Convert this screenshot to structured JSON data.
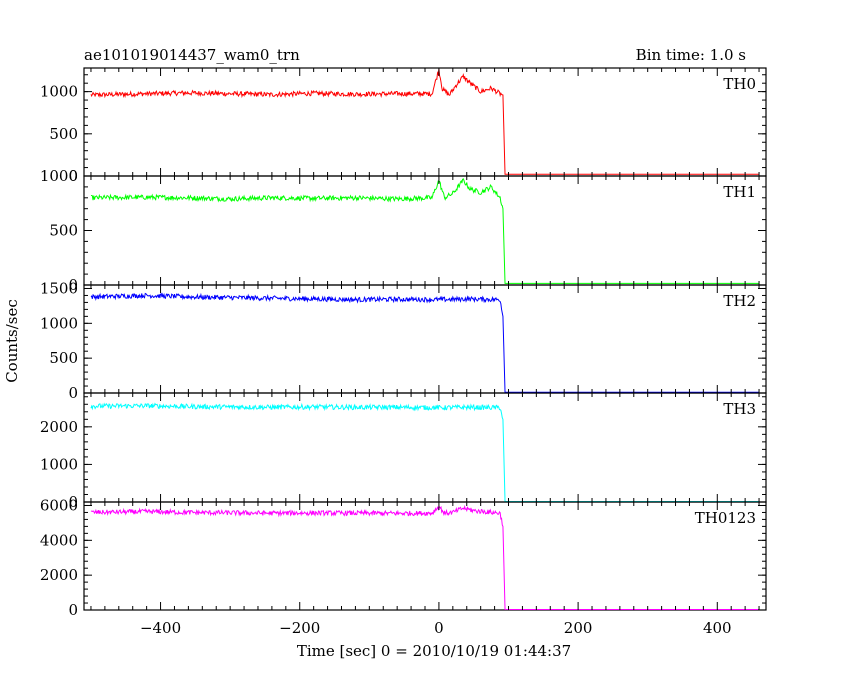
{
  "header": {
    "title": "ae101019014437_wam0_trn",
    "bin_time": "Bin time: 1.0 s"
  },
  "chart_data": {
    "type": "line",
    "title": "ae101019014437_wam0_trn",
    "subtitle": "Bin time: 1.0 s",
    "xlabel": "Time [sec] 0 = 2010/10/19 01:44:37",
    "ylabel": "Counts/sec",
    "xlim": [
      -510,
      470
    ],
    "x_ticks": [
      -400,
      -200,
      0,
      200,
      400
    ],
    "x_tick_labels": [
      "−400",
      "−200",
      "0",
      "200",
      "400"
    ],
    "grid": false,
    "panels": [
      {
        "label": "TH0",
        "color": "#ff0000",
        "ylim": [
          0,
          1280
        ],
        "y_ticks": [
          0,
          500,
          1000
        ],
        "y_tick_labels": [
          "0",
          "500",
          "1000"
        ],
        "segments": [
          [
            -500,
            960
          ],
          [
            -420,
            975
          ],
          [
            -360,
            985
          ],
          [
            -300,
            975
          ],
          [
            -240,
            965
          ],
          [
            -180,
            980
          ],
          [
            -120,
            970
          ],
          [
            -60,
            975
          ],
          [
            -10,
            975
          ],
          [
            0,
            1260
          ],
          [
            5,
            1030
          ],
          [
            15,
            960
          ],
          [
            25,
            1080
          ],
          [
            35,
            1180
          ],
          [
            45,
            1100
          ],
          [
            60,
            1000
          ],
          [
            75,
            1040
          ],
          [
            88,
            975
          ],
          [
            92,
            960
          ],
          [
            95,
            20
          ],
          [
            460,
            20
          ]
        ]
      },
      {
        "label": "TH1",
        "color": "#00ff00",
        "ylim": [
          0,
          1000
        ],
        "y_ticks": [
          0,
          500,
          1000
        ],
        "y_tick_labels": [
          "0",
          "500",
          "1000"
        ],
        "segments": [
          [
            -500,
            800
          ],
          [
            -420,
            805
          ],
          [
            -360,
            800
          ],
          [
            -300,
            790
          ],
          [
            -240,
            800
          ],
          [
            -180,
            795
          ],
          [
            -120,
            800
          ],
          [
            -60,
            790
          ],
          [
            -10,
            800
          ],
          [
            0,
            960
          ],
          [
            8,
            800
          ],
          [
            20,
            840
          ],
          [
            35,
            960
          ],
          [
            45,
            880
          ],
          [
            60,
            850
          ],
          [
            75,
            900
          ],
          [
            88,
            800
          ],
          [
            92,
            700
          ],
          [
            95,
            15
          ],
          [
            460,
            15
          ]
        ]
      },
      {
        "label": "TH2",
        "color": "#0000ff",
        "ylim": [
          0,
          1550
        ],
        "y_ticks": [
          0,
          500,
          1000,
          1500
        ],
        "y_tick_labels": [
          "0",
          "500",
          "1000",
          "1500"
        ],
        "segments": [
          [
            -500,
            1380
          ],
          [
            -420,
            1400
          ],
          [
            -360,
            1380
          ],
          [
            -300,
            1370
          ],
          [
            -240,
            1360
          ],
          [
            -180,
            1350
          ],
          [
            -120,
            1340
          ],
          [
            -60,
            1345
          ],
          [
            0,
            1340
          ],
          [
            40,
            1350
          ],
          [
            88,
            1340
          ],
          [
            92,
            1100
          ],
          [
            95,
            10
          ],
          [
            460,
            10
          ]
        ]
      },
      {
        "label": "TH3",
        "color": "#00ffff",
        "ylim": [
          0,
          2900
        ],
        "y_ticks": [
          0,
          1000,
          2000
        ],
        "y_tick_labels": [
          "0",
          "1000",
          "2000"
        ],
        "segments": [
          [
            -500,
            2550
          ],
          [
            -420,
            2560
          ],
          [
            -360,
            2540
          ],
          [
            -300,
            2530
          ],
          [
            -240,
            2520
          ],
          [
            -180,
            2530
          ],
          [
            -120,
            2520
          ],
          [
            -60,
            2520
          ],
          [
            0,
            2510
          ],
          [
            40,
            2520
          ],
          [
            88,
            2510
          ],
          [
            92,
            2200
          ],
          [
            95,
            15
          ],
          [
            460,
            15
          ]
        ]
      },
      {
        "label": "TH0123",
        "color": "#ff00ff",
        "ylim": [
          0,
          6200
        ],
        "y_ticks": [
          0,
          2000,
          4000,
          6000
        ],
        "y_tick_labels": [
          "0",
          "2000",
          "4000",
          "6000"
        ],
        "segments": [
          [
            -500,
            5600
          ],
          [
            -420,
            5650
          ],
          [
            -360,
            5600
          ],
          [
            -300,
            5580
          ],
          [
            -240,
            5560
          ],
          [
            -180,
            5570
          ],
          [
            -120,
            5560
          ],
          [
            -60,
            5550
          ],
          [
            -10,
            5560
          ],
          [
            0,
            5950
          ],
          [
            8,
            5560
          ],
          [
            20,
            5600
          ],
          [
            35,
            5850
          ],
          [
            50,
            5700
          ],
          [
            65,
            5650
          ],
          [
            88,
            5560
          ],
          [
            92,
            4800
          ],
          [
            95,
            30
          ],
          [
            460,
            30
          ]
        ]
      }
    ]
  }
}
